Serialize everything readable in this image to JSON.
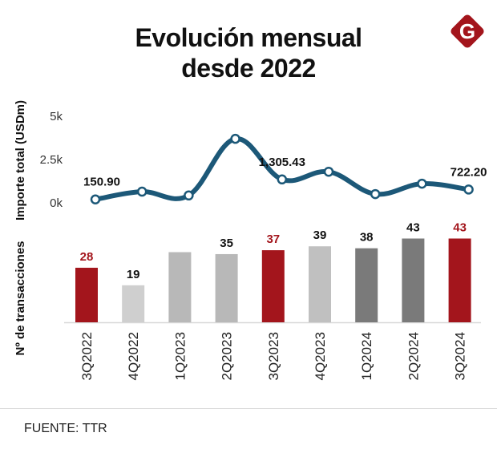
{
  "header": {
    "title_line1": "Evolución mensual",
    "title_line2": "desde 2022",
    "logo_letter": "G",
    "logo_color": "#a3151c"
  },
  "footer": {
    "source": "FUENTE: TTR"
  },
  "chart_data": [
    {
      "type": "line",
      "title": "Evolución mensual desde 2022",
      "ylabel": "Importe total (USDm)",
      "xlabel": "",
      "categories": [
        "3Q2022",
        "4Q2022",
        "1Q2023",
        "2Q2023",
        "3Q2023",
        "4Q2023",
        "1Q2024",
        "2Q2024",
        "3Q2024"
      ],
      "values": [
        150.9,
        600,
        380,
        3650,
        1305.43,
        1750,
        460,
        1060,
        722.2
      ],
      "data_labels": [
        {
          "index": 0,
          "text": "150.90"
        },
        {
          "index": 4,
          "text": "1,305.43"
        },
        {
          "index": 8,
          "text": "722.20"
        }
      ],
      "yticks": [
        {
          "value": 0,
          "label": "0k"
        },
        {
          "value": 2500,
          "label": "2.5k"
        },
        {
          "value": 5000,
          "label": "5k"
        }
      ],
      "ylim": [
        0,
        5000
      ],
      "grid": false,
      "line_color": "#1c5878"
    },
    {
      "type": "bar",
      "ylabel": "Nº de transacciones",
      "xlabel": "",
      "categories": [
        "3Q2022",
        "4Q2022",
        "1Q2023",
        "2Q2023",
        "3Q2023",
        "4Q2023",
        "1Q2024",
        "2Q2024",
        "3Q2024"
      ],
      "values": [
        28,
        19,
        36,
        35,
        37,
        39,
        38,
        43,
        43
      ],
      "labels": [
        "28",
        "19",
        "",
        "35",
        "37",
        "39",
        "38",
        "43",
        "43"
      ],
      "bar_colors": [
        "#a3151c",
        "#cfcfcf",
        "#b8b8b8",
        "#b8b8b8",
        "#a3151c",
        "#c0c0c0",
        "#7a7a7a",
        "#7a7a7a",
        "#a3151c"
      ],
      "label_colors": [
        "#a3151c",
        "#111111",
        "#111111",
        "#111111",
        "#a3151c",
        "#111111",
        "#111111",
        "#111111",
        "#a3151c"
      ],
      "ylim": [
        0,
        45
      ],
      "grid": false
    }
  ]
}
